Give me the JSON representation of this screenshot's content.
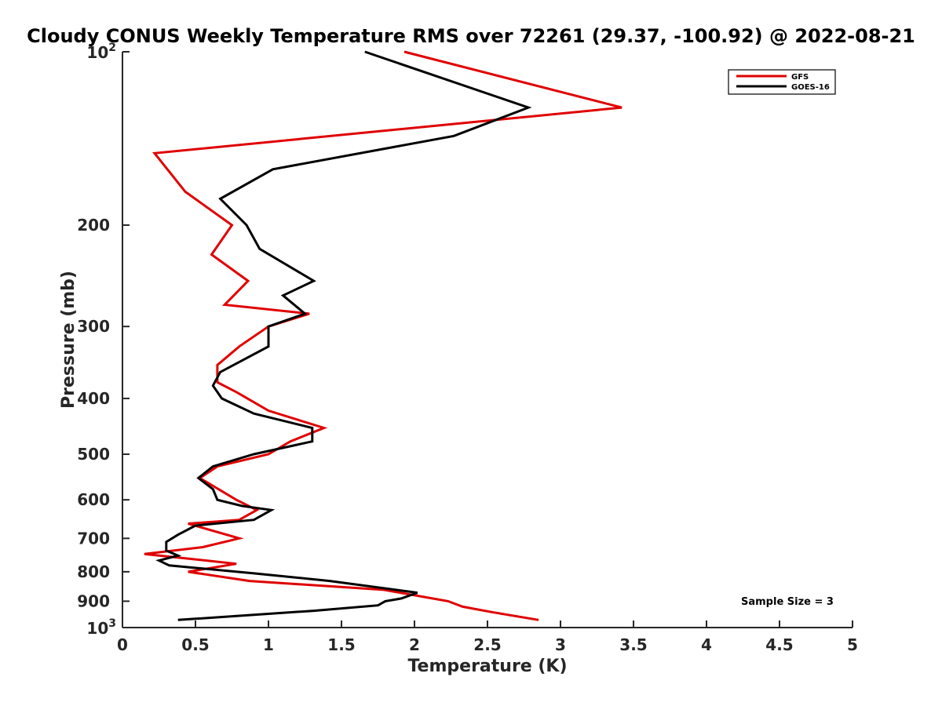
{
  "chart_data": {
    "type": "line",
    "title": "Cloudy CONUS Weekly Temperature RMS over 72261 (29.37, -100.92) @ 2022-08-21",
    "xlabel": "Temperature (K)",
    "ylabel": "Pressure (mb)",
    "xlim": [
      0,
      5
    ],
    "ylim": [
      100,
      1000
    ],
    "yscale": "log",
    "y_reversed": true,
    "grid": false,
    "legend_position": "top-right",
    "x_ticks": [
      "0",
      "0.5",
      "1",
      "1.5",
      "2",
      "2.5",
      "3",
      "3.5",
      "4",
      "4.5",
      "5"
    ],
    "y_ticks": [
      {
        "value": 100,
        "base": "10",
        "exp": "2"
      },
      {
        "value": 200,
        "label": "200"
      },
      {
        "value": 300,
        "label": "300"
      },
      {
        "value": 400,
        "label": "400"
      },
      {
        "value": 500,
        "label": "500"
      },
      {
        "value": 600,
        "label": "600"
      },
      {
        "value": 700,
        "label": "700"
      },
      {
        "value": 800,
        "label": "800"
      },
      {
        "value": 900,
        "label": "900"
      },
      {
        "value": 1000,
        "base": "10",
        "exp": "3"
      }
    ],
    "annotation": "Sample Size = 3",
    "series": [
      {
        "name": "GFS",
        "color": "#e00000",
        "points": [
          [
            1.93,
            100
          ],
          [
            3.42,
            125
          ],
          [
            0.22,
            150
          ],
          [
            0.43,
            175
          ],
          [
            0.75,
            200
          ],
          [
            0.61,
            225
          ],
          [
            0.86,
            250
          ],
          [
            0.7,
            275
          ],
          [
            1.28,
            285
          ],
          [
            1.0,
            300
          ],
          [
            0.8,
            325
          ],
          [
            0.65,
            350
          ],
          [
            0.65,
            375
          ],
          [
            0.78,
            390
          ],
          [
            1.0,
            420
          ],
          [
            1.38,
            450
          ],
          [
            1.15,
            475
          ],
          [
            1.0,
            500
          ],
          [
            0.65,
            525
          ],
          [
            0.53,
            550
          ],
          [
            0.78,
            600
          ],
          [
            0.92,
            625
          ],
          [
            0.8,
            650
          ],
          [
            0.45,
            660
          ],
          [
            0.8,
            700
          ],
          [
            0.55,
            725
          ],
          [
            0.15,
            745
          ],
          [
            0.78,
            775
          ],
          [
            0.45,
            800
          ],
          [
            0.87,
            830
          ],
          [
            1.79,
            860
          ],
          [
            2.23,
            900
          ],
          [
            2.33,
            920
          ],
          [
            2.53,
            940
          ],
          [
            2.85,
            970
          ]
        ]
      },
      {
        "name": "GOES-16",
        "color": "#000000",
        "points": [
          [
            1.66,
            100
          ],
          [
            2.78,
            125
          ],
          [
            2.27,
            140
          ],
          [
            1.03,
            160
          ],
          [
            0.67,
            180
          ],
          [
            0.85,
            200
          ],
          [
            0.94,
            220
          ],
          [
            1.31,
            250
          ],
          [
            1.1,
            265
          ],
          [
            1.25,
            285
          ],
          [
            1.0,
            300
          ],
          [
            1.0,
            325
          ],
          [
            0.67,
            360
          ],
          [
            0.62,
            380
          ],
          [
            0.68,
            400
          ],
          [
            0.9,
            425
          ],
          [
            1.3,
            450
          ],
          [
            1.3,
            475
          ],
          [
            0.9,
            500
          ],
          [
            0.62,
            525
          ],
          [
            0.52,
            550
          ],
          [
            0.62,
            575
          ],
          [
            0.65,
            600
          ],
          [
            0.82,
            615
          ],
          [
            1.02,
            625
          ],
          [
            0.9,
            650
          ],
          [
            0.5,
            665
          ],
          [
            0.38,
            690
          ],
          [
            0.3,
            710
          ],
          [
            0.3,
            735
          ],
          [
            0.38,
            750
          ],
          [
            0.25,
            765
          ],
          [
            0.32,
            780
          ],
          [
            0.9,
            805
          ],
          [
            1.42,
            830
          ],
          [
            2.02,
            870
          ],
          [
            1.91,
            890
          ],
          [
            1.8,
            900
          ],
          [
            1.75,
            915
          ],
          [
            1.31,
            935
          ],
          [
            0.38,
            970
          ]
        ]
      }
    ]
  }
}
